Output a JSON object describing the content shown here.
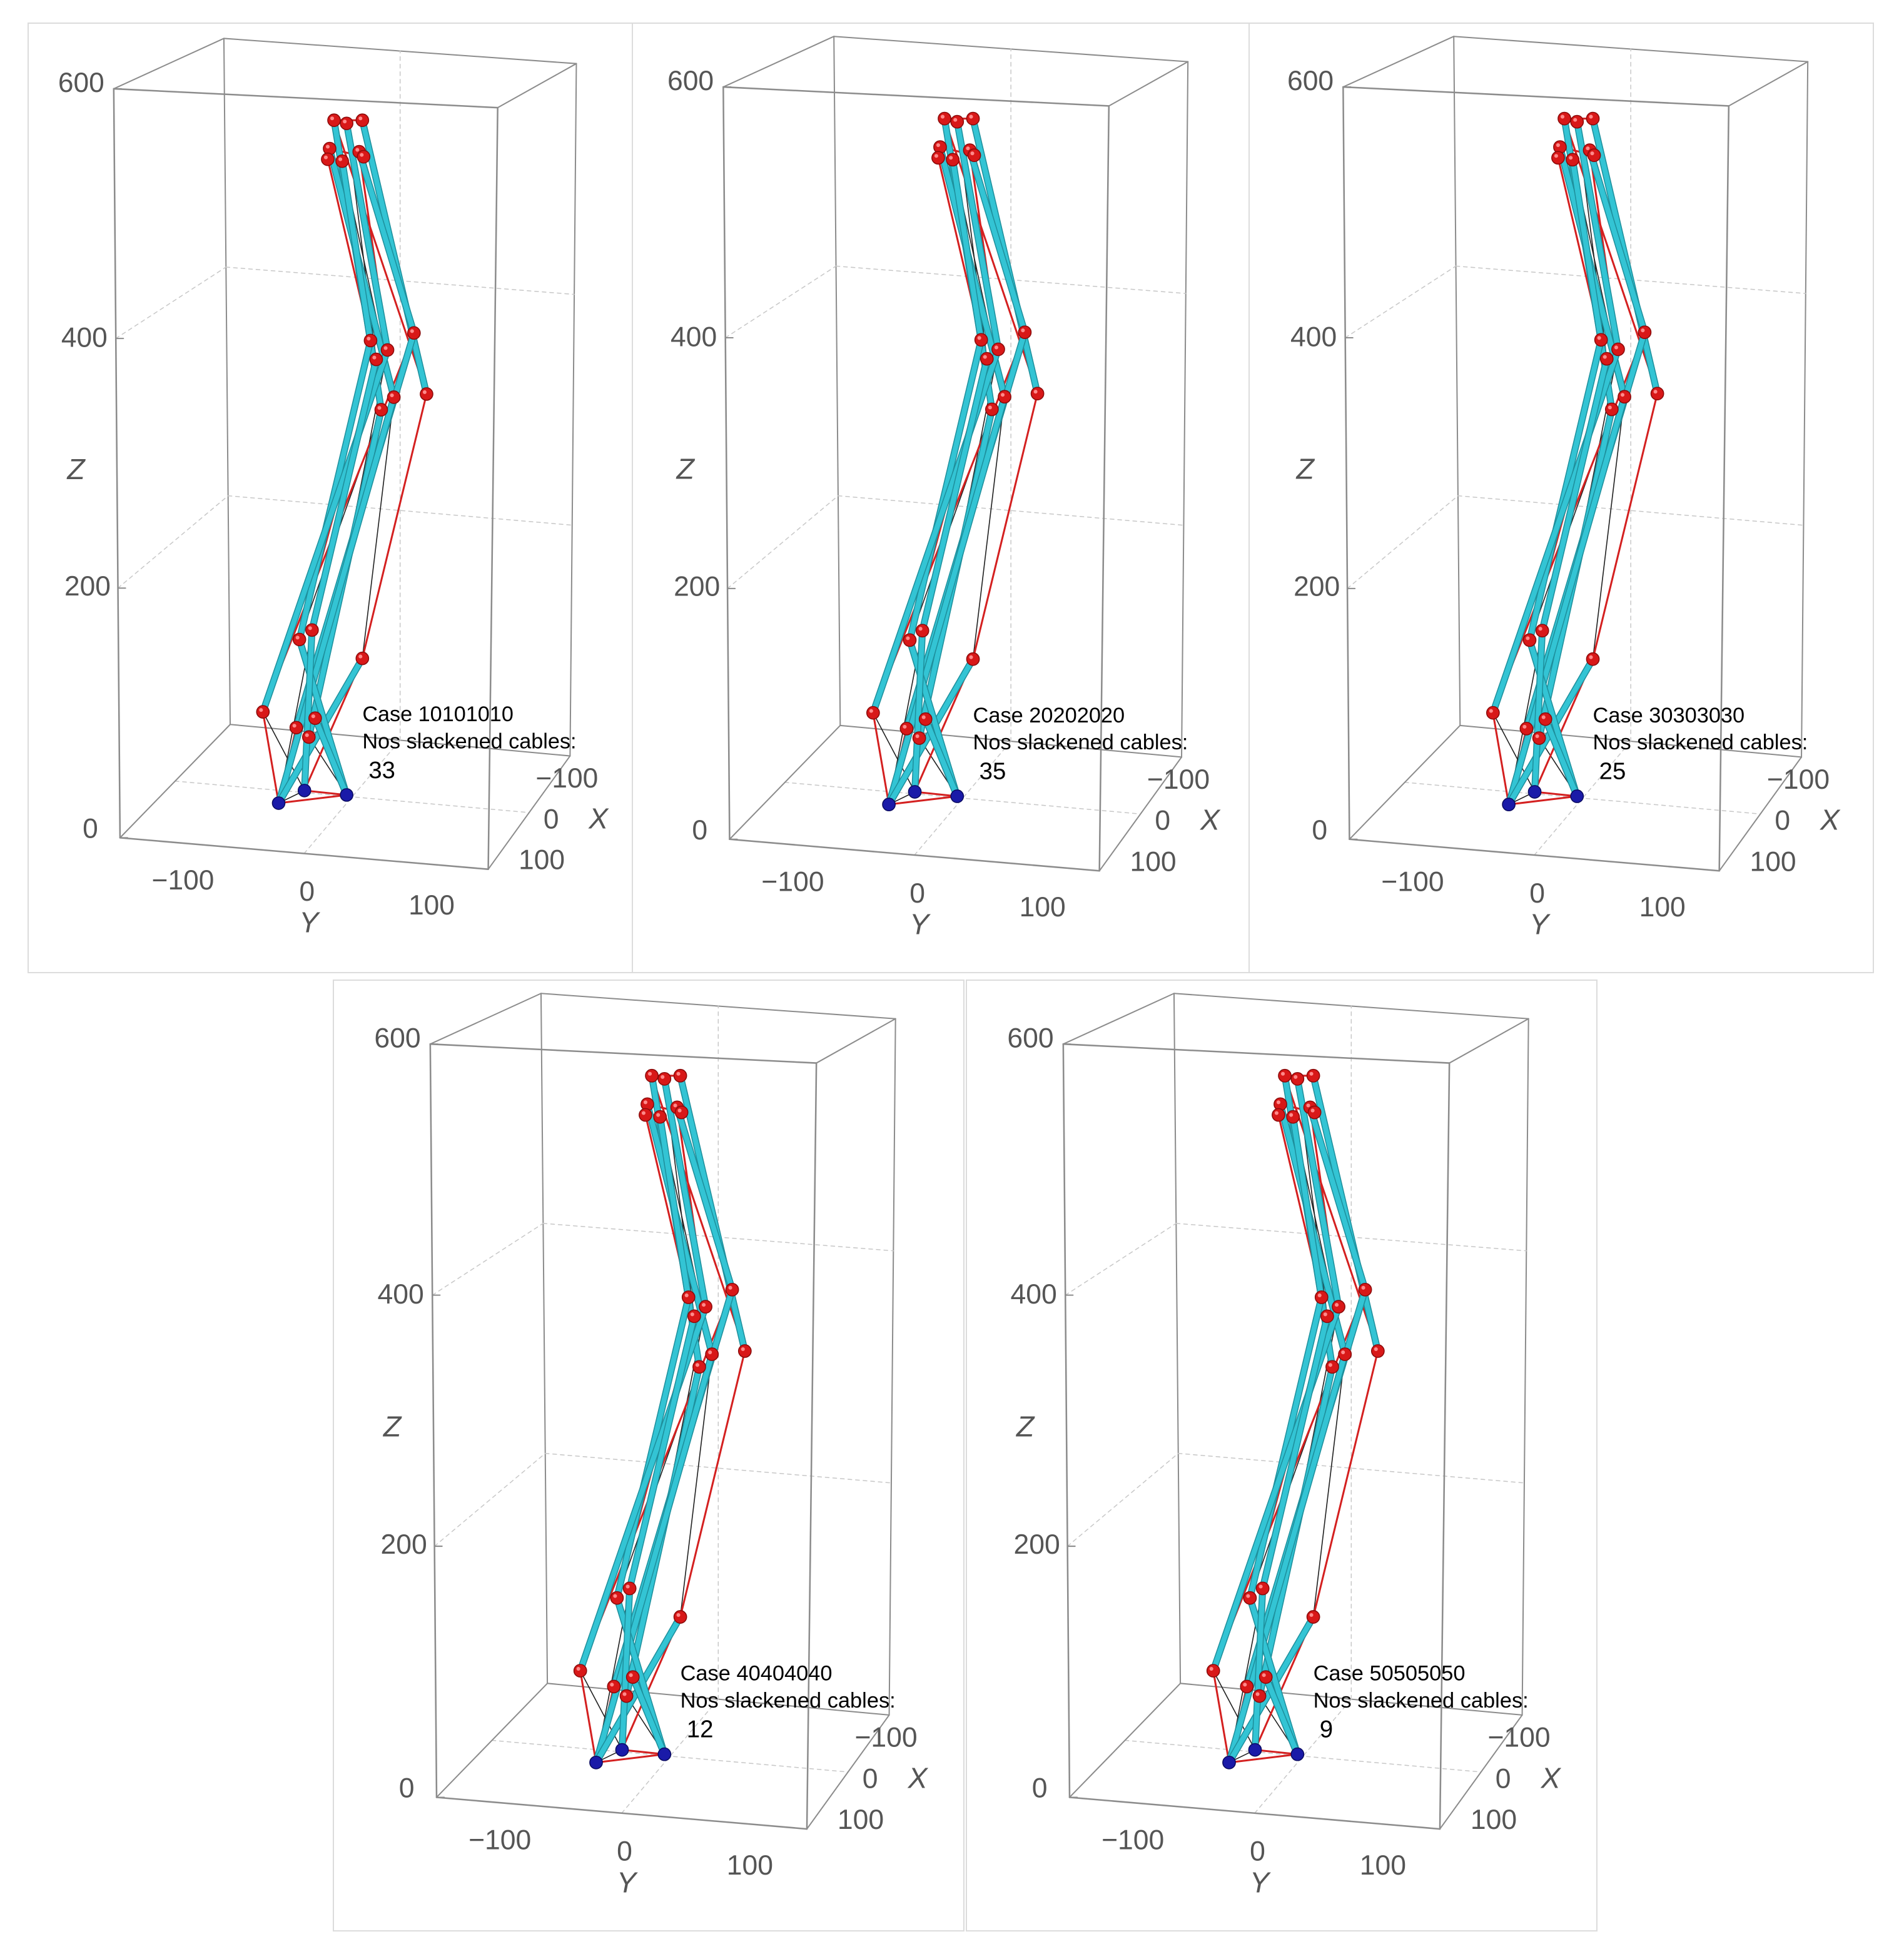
{
  "figure": {
    "panels": [
      {
        "case_label": "Case 10101010",
        "slack_label": "Nos slackened cables:",
        "slack_count": "33"
      },
      {
        "case_label": "Case 20202020",
        "slack_label": "Nos slackened cables:",
        "slack_count": "35"
      },
      {
        "case_label": "Case 30303030",
        "slack_label": "Nos slackened cables:",
        "slack_count": "25"
      },
      {
        "case_label": "Case 40404040",
        "slack_label": "Nos slackened cables:",
        "slack_count": "12"
      },
      {
        "case_label": "Case 50505050",
        "slack_label": "Nos slackened cables:",
        "slack_count": "9"
      }
    ],
    "axes": {
      "z_label": "Z",
      "y_label": "Y",
      "x_label": "X",
      "z_ticks": [
        "0",
        "200",
        "400",
        "600"
      ],
      "y_ticks": [
        "−100",
        "0",
        "100"
      ],
      "x_ticks": [
        "−100",
        "0",
        "100"
      ]
    },
    "colors": {
      "strut": "#33c4d4",
      "strut_dark": "#1e8f9c",
      "slack_cable": "#d42020",
      "taut_cable": "#222222",
      "node": "#d81818",
      "anchor_node": "#1a1aa8",
      "box_edge": "#8c8c8c",
      "grid": "#c8c8c8"
    }
  }
}
